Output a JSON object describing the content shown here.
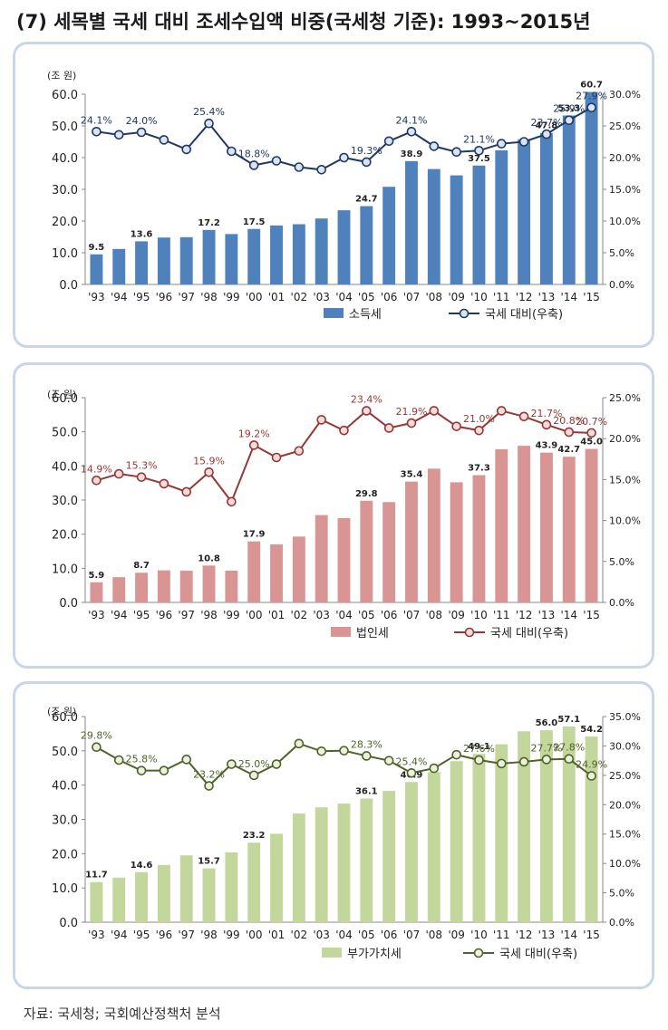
{
  "title": "(7) 세목별 국세 대비 조세수입액 비중(국세청 기준): 1993~2015년",
  "source": "자료: 국세청; 국회예산정책처 분석",
  "chart_data": [
    {
      "type": "bar+line",
      "unit_label": "(조 원)",
      "categories": [
        "'93",
        "'94",
        "'95",
        "'96",
        "'97",
        "'98",
        "'99",
        "'00",
        "'01",
        "'02",
        "'03",
        "'04",
        "'05",
        "'06",
        "'07",
        "'08",
        "'09",
        "'10",
        "'11",
        "'12",
        "'13",
        "'14",
        "'15"
      ],
      "series": [
        {
          "name": "소득세",
          "type": "bar",
          "axis": "left",
          "color": "#4f81bd",
          "values": [
            9.5,
            11.2,
            13.6,
            14.8,
            14.9,
            17.2,
            15.9,
            17.5,
            18.6,
            19.0,
            20.8,
            23.4,
            24.7,
            30.8,
            38.9,
            36.4,
            34.4,
            37.5,
            42.3,
            45.8,
            47.8,
            53.3,
            60.7
          ],
          "labels": [
            "9.5",
            null,
            "13.6",
            null,
            null,
            "17.2",
            null,
            "17.5",
            null,
            null,
            null,
            null,
            "24.7",
            null,
            "38.9",
            null,
            null,
            "37.5",
            null,
            null,
            "47.8",
            "53.3",
            "60.7"
          ]
        },
        {
          "name": "국세 대비(우축)",
          "type": "line",
          "axis": "right",
          "color": "#1f3864",
          "marker_fill": "#dbe5f1",
          "values": [
            24.1,
            23.6,
            24.0,
            22.8,
            21.3,
            25.4,
            21.0,
            18.8,
            19.5,
            18.5,
            18.1,
            20.0,
            19.3,
            22.6,
            24.1,
            21.8,
            20.9,
            21.1,
            22.2,
            22.5,
            23.7,
            25.9,
            27.9
          ],
          "labels": [
            "24.1%",
            null,
            "24.0%",
            null,
            null,
            "25.4%",
            null,
            "18.8%",
            null,
            null,
            null,
            null,
            "19.3%",
            null,
            "24.1%",
            null,
            null,
            "21.1%",
            null,
            null,
            "23.7%",
            "25.9%",
            "27.9%"
          ]
        }
      ],
      "ylim_left": [
        0,
        60
      ],
      "yticks_left": [
        "0.0",
        "10.0",
        "20.0",
        "30.0",
        "40.0",
        "50.0",
        "60.0"
      ],
      "ylim_right": [
        0,
        30
      ],
      "yticks_right": [
        "0.0%",
        "5.0%",
        "10.0%",
        "15.0%",
        "20.0%",
        "25.0%",
        "30.0%"
      ],
      "label_color": "#1f3864"
    },
    {
      "type": "bar+line",
      "unit_label": "(조 원)",
      "categories": [
        "'93",
        "'94",
        "'95",
        "'96",
        "'97",
        "'98",
        "'99",
        "'00",
        "'01",
        "'02",
        "'03",
        "'04",
        "'05",
        "'06",
        "'07",
        "'08",
        "'09",
        "'10",
        "'11",
        "'12",
        "'13",
        "'14",
        "'15"
      ],
      "series": [
        {
          "name": "법인세",
          "type": "bar",
          "axis": "left",
          "color": "#d99594",
          "values": [
            5.9,
            7.4,
            8.7,
            9.4,
            9.3,
            10.8,
            9.3,
            17.9,
            17.0,
            19.3,
            25.6,
            24.7,
            29.8,
            29.4,
            35.4,
            39.2,
            35.2,
            37.3,
            44.9,
            45.9,
            43.9,
            42.7,
            45.0
          ],
          "labels": [
            "5.9",
            null,
            "8.7",
            null,
            null,
            "10.8",
            null,
            "17.9",
            null,
            null,
            null,
            null,
            "29.8",
            null,
            "35.4",
            null,
            null,
            "37.3",
            null,
            null,
            "43.9",
            "42.7",
            "45.0"
          ]
        },
        {
          "name": "국세 대비(우축)",
          "type": "line",
          "axis": "right",
          "color": "#953735",
          "marker_fill": "#f2dcdb",
          "values": [
            14.9,
            15.7,
            15.3,
            14.5,
            13.5,
            15.9,
            12.3,
            19.2,
            17.7,
            18.5,
            22.3,
            21.0,
            23.4,
            21.3,
            21.9,
            23.4,
            21.5,
            21.0,
            23.4,
            22.7,
            21.7,
            20.8,
            20.7
          ],
          "labels": [
            "14.9%",
            null,
            "15.3%",
            null,
            null,
            "15.9%",
            null,
            "19.2%",
            null,
            null,
            null,
            null,
            "23.4%",
            null,
            "21.9%",
            null,
            null,
            "21.0%",
            null,
            null,
            "21.7%",
            "20.8%",
            "20.7%"
          ]
        }
      ],
      "ylim_left": [
        0,
        60
      ],
      "yticks_left": [
        "0.0",
        "10.0",
        "20.0",
        "30.0",
        "40.0",
        "50.0",
        "60.0"
      ],
      "ylim_right": [
        0,
        25
      ],
      "yticks_right": [
        "0.0%",
        "5.0%",
        "10.0%",
        "15.0%",
        "20.0%",
        "25.0%"
      ],
      "label_color": "#953735"
    },
    {
      "type": "bar+line",
      "unit_label": "(조 원)",
      "categories": [
        "'93",
        "'94",
        "'95",
        "'96",
        "'97",
        "'98",
        "'99",
        "'00",
        "'01",
        "'02",
        "'03",
        "'04",
        "'05",
        "'06",
        "'07",
        "'08",
        "'09",
        "'10",
        "'11",
        "'12",
        "'13",
        "'14",
        "'15"
      ],
      "series": [
        {
          "name": "부가가치세",
          "type": "bar",
          "axis": "left",
          "color": "#c3d69b",
          "values": [
            11.7,
            13.0,
            14.6,
            16.7,
            19.5,
            15.7,
            20.4,
            23.2,
            25.8,
            31.7,
            33.5,
            34.6,
            36.1,
            38.3,
            40.9,
            43.8,
            47.0,
            49.1,
            51.9,
            55.7,
            56.0,
            57.1,
            54.2
          ],
          "labels": [
            "11.7",
            null,
            "14.6",
            null,
            null,
            "15.7",
            null,
            "23.2",
            null,
            null,
            null,
            null,
            "36.1",
            null,
            "40.9",
            null,
            null,
            "49.1",
            null,
            null,
            "56.0",
            "57.1",
            "54.2"
          ]
        },
        {
          "name": "국세 대비(우축)",
          "type": "line",
          "axis": "right",
          "color": "#4f6228",
          "marker_fill": "#ebf1de",
          "values": [
            29.8,
            27.6,
            25.8,
            25.8,
            27.7,
            23.2,
            26.9,
            25.0,
            26.9,
            30.4,
            29.1,
            29.2,
            28.3,
            27.5,
            25.4,
            26.2,
            28.5,
            27.6,
            27.0,
            27.3,
            27.7,
            27.8,
            24.9
          ],
          "labels": [
            "29.8%",
            null,
            "25.8%",
            null,
            null,
            "23.2%",
            null,
            "25.0%",
            null,
            null,
            null,
            null,
            "28.3%",
            null,
            "25.4%",
            null,
            null,
            "27.6%",
            null,
            null,
            "27.7%",
            "27.8%",
            "24.9%"
          ]
        }
      ],
      "ylim_left": [
        0,
        60
      ],
      "yticks_left": [
        "0.0",
        "10.0",
        "20.0",
        "30.0",
        "40.0",
        "50.0",
        "60.0"
      ],
      "ylim_right": [
        0,
        35
      ],
      "yticks_right": [
        "0.0%",
        "5.0%",
        "10.0%",
        "15.0%",
        "20.0%",
        "25.0%",
        "30.0%",
        "35.0%"
      ],
      "label_color": "#4f6228"
    }
  ]
}
